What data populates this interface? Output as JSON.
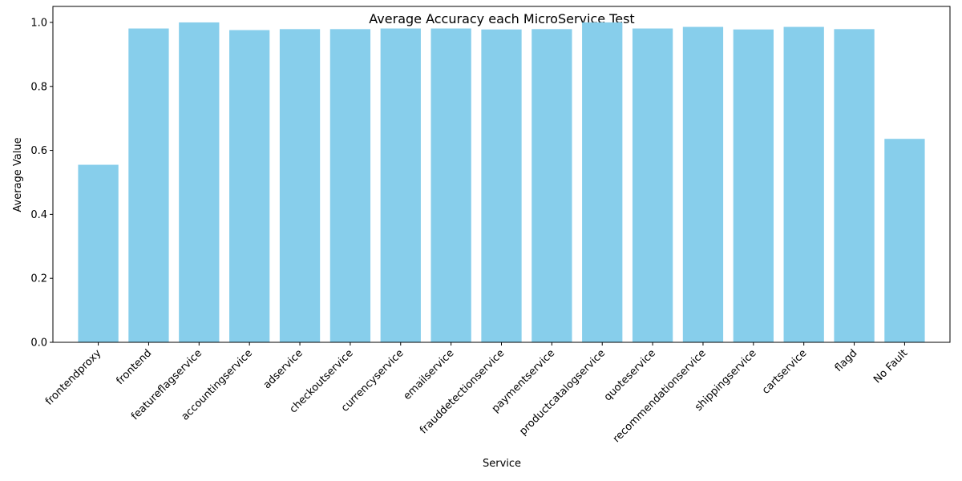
{
  "chart_data": {
    "type": "bar",
    "title": "Average Accuracy each MicroService Test",
    "xlabel": "Service",
    "ylabel": "Average Value",
    "categories": [
      "frontendproxy",
      "frontend",
      "featureflagservice",
      "accountingservice",
      "adservice",
      "checkoutservice",
      "currencyservice",
      "emailservice",
      "frauddetectionservice",
      "paymentservice",
      "productcatalogservice",
      "quoteservice",
      "recommendationservice",
      "shippingservice",
      "cartservice",
      "flagd",
      "No Fault"
    ],
    "values": [
      0.555,
      0.981,
      1.0,
      0.976,
      0.979,
      0.979,
      0.981,
      0.981,
      0.978,
      0.979,
      1.0,
      0.981,
      0.986,
      0.978,
      0.986,
      0.979,
      0.636
    ],
    "ylim": [
      0,
      1.05
    ],
    "yticks": [
      "0.0",
      "0.2",
      "0.4",
      "0.6",
      "0.8",
      "1.0"
    ],
    "bar_color": "#87ceeb",
    "grid": false,
    "legend": "none"
  }
}
